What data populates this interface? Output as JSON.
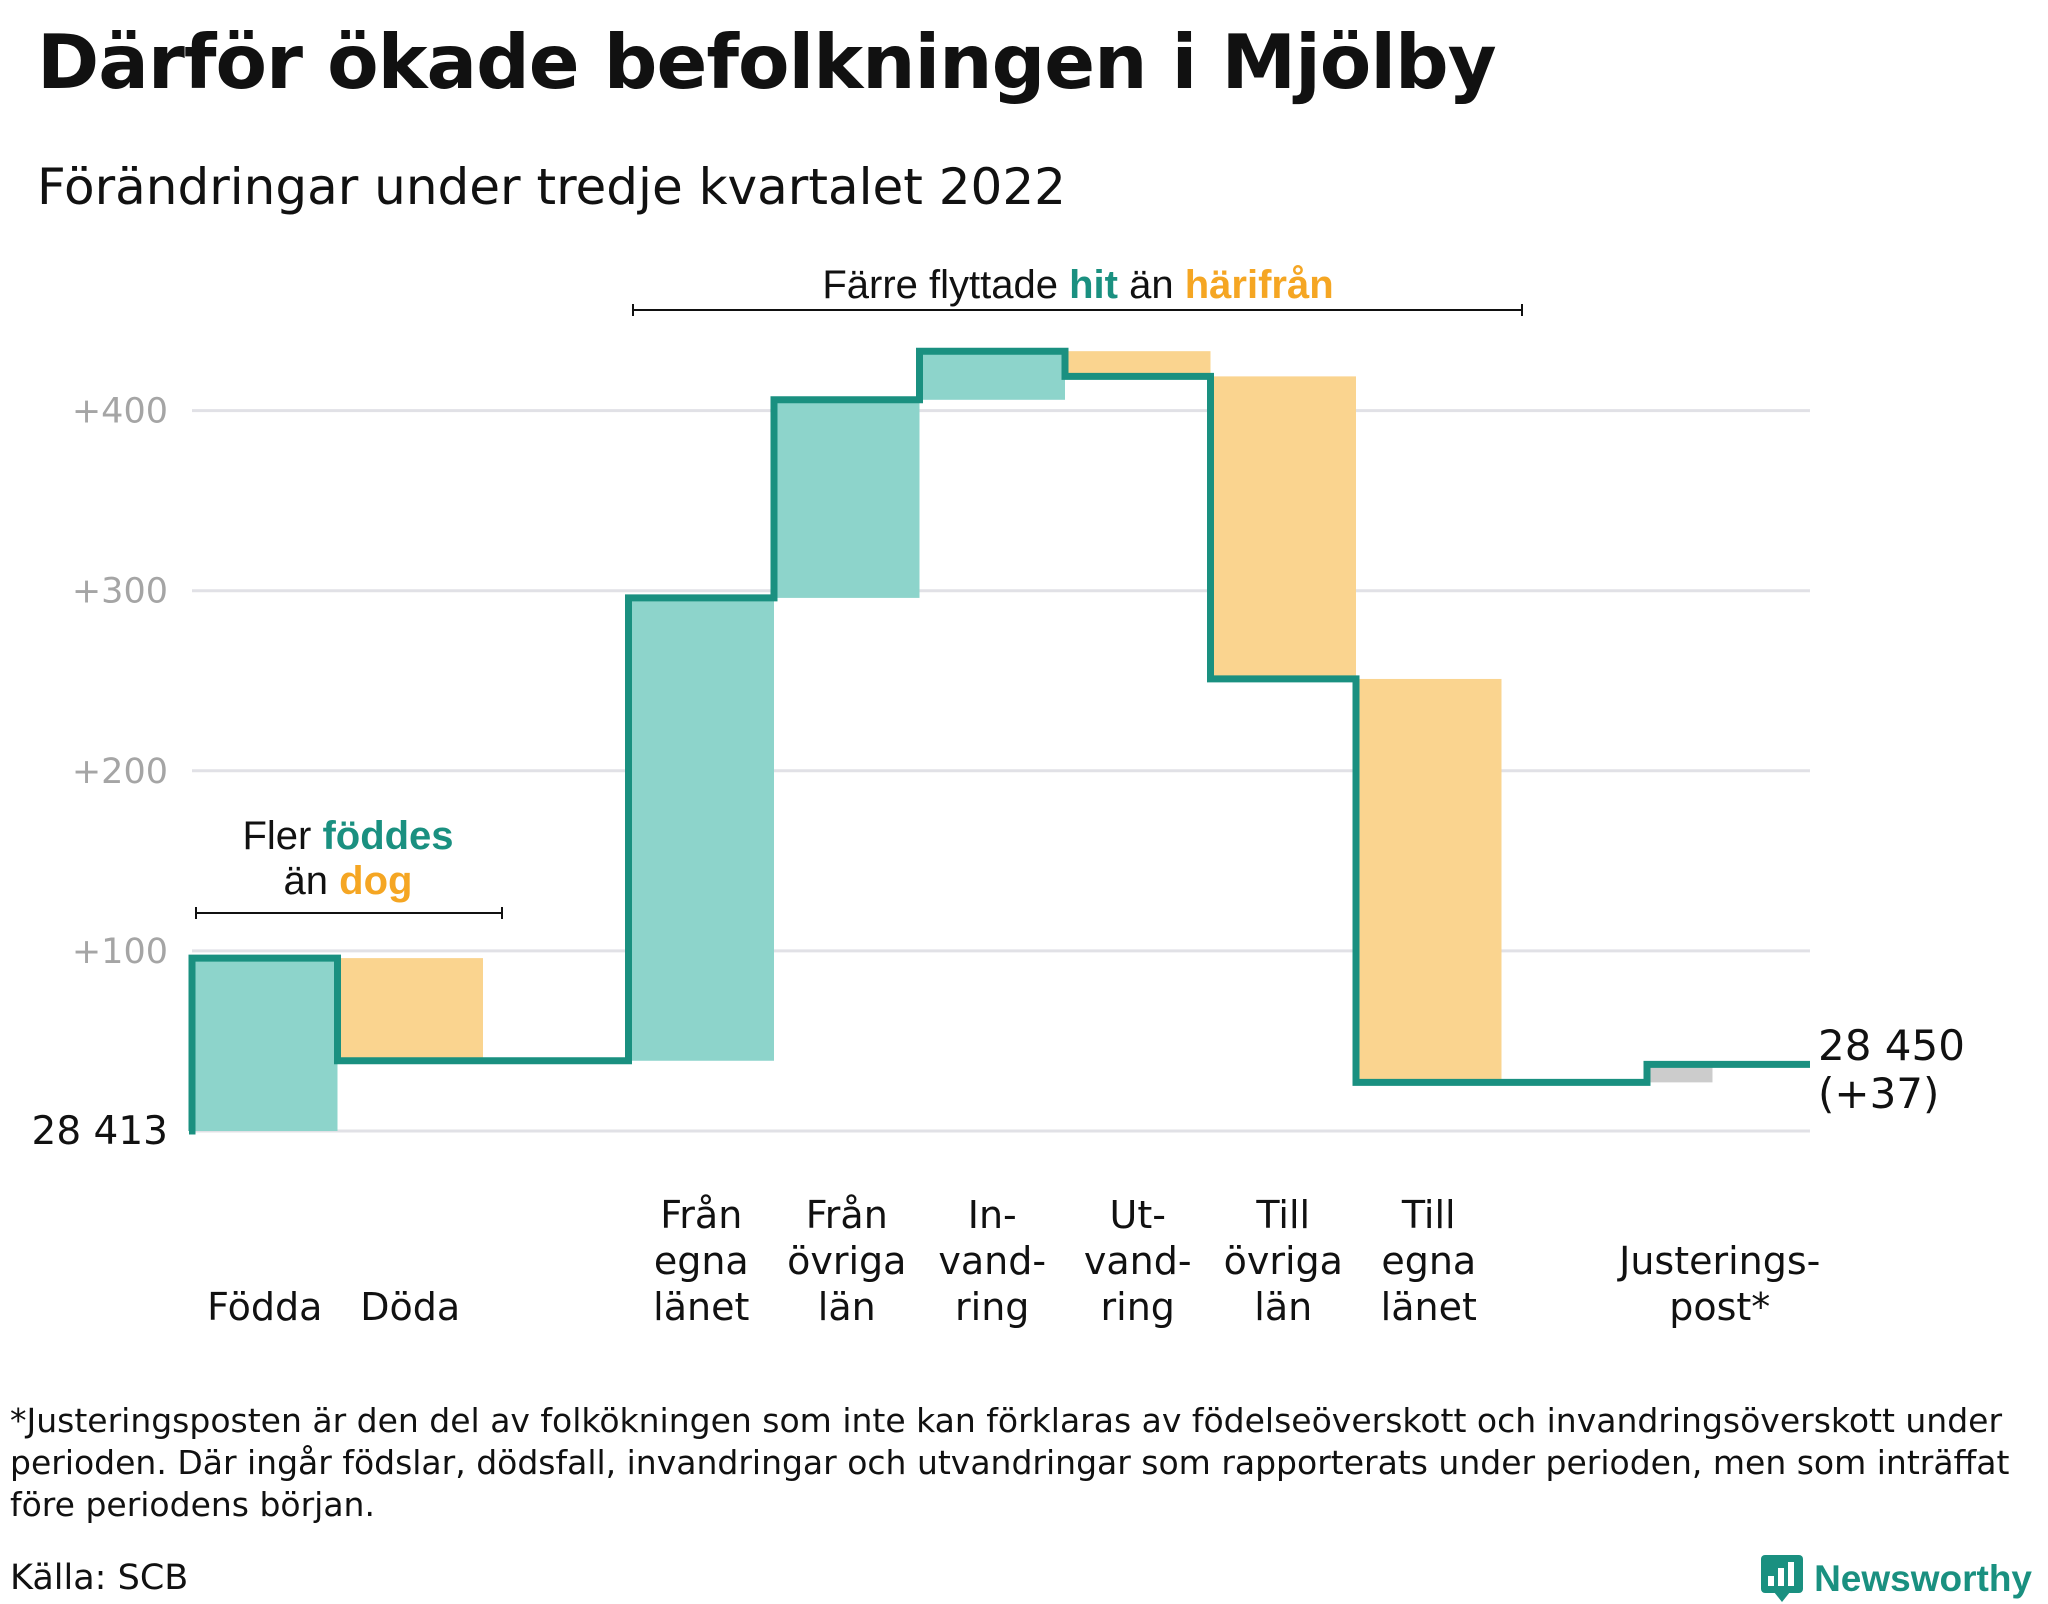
{
  "title": "Därför ökade befolkningen i Mjölby",
  "subtitle": "Förändringar under tredje kvartalet 2022",
  "footnote": "*Justeringsposten är den del av folkökningen som inte kan förklaras av födelseöverskott och invandringsöverskott under perioden. Där ingår födslar, dödsfall, invandringar och utvandringar som rapporterats under perioden, men som inträffat före periodens början.",
  "source": "Källa: SCB",
  "brand": "Newsworthy",
  "colors": {
    "line": "#1a9080",
    "increase": "#8dd4cb",
    "decrease": "#fad48f",
    "adjustment": "#cccccc",
    "grid": "#e1e1e6",
    "tick": "#a5a5a5",
    "accent_orange": "#f5a623"
  },
  "chart_data": {
    "type": "waterfall",
    "start_value": 28413,
    "start_label": "28 413",
    "end_label": "28 450",
    "end_change_label": "(+37)",
    "ylim": [
      0,
      440
    ],
    "yticks": [
      100,
      200,
      300,
      400
    ],
    "ytick_labels": [
      "+100",
      "+200",
      "+300",
      "+400"
    ],
    "grid": true,
    "steps": [
      {
        "label": [
          "Födda"
        ],
        "change": 96,
        "kind": "increase"
      },
      {
        "label": [
          "Döda"
        ],
        "change": -57,
        "kind": "decrease"
      },
      {
        "label": [
          "Från",
          "egna",
          "länet"
        ],
        "change": 257,
        "kind": "increase"
      },
      {
        "label": [
          "Från",
          "övriga",
          "län"
        ],
        "change": 110,
        "kind": "increase"
      },
      {
        "label": [
          "In-",
          "vand-",
          "ring"
        ],
        "change": 27,
        "kind": "increase"
      },
      {
        "label": [
          "Ut-",
          "vand-",
          "ring"
        ],
        "change": -14,
        "kind": "decrease"
      },
      {
        "label": [
          "Till",
          "övriga",
          "län"
        ],
        "change": -168,
        "kind": "decrease"
      },
      {
        "label": [
          "Till",
          "egna",
          "länet"
        ],
        "change": -224,
        "kind": "decrease"
      },
      {
        "label": [
          "Justerings-",
          "post*"
        ],
        "change": 10,
        "kind": "adjustment"
      }
    ],
    "annotations": [
      {
        "lines": [
          [
            {
              "t": "Fler ",
              "c": "text"
            },
            {
              "t": "föddes",
              "c": "increase"
            }
          ],
          [
            {
              "t": "än ",
              "c": "text"
            },
            {
              "t": "dog",
              "c": "decrease"
            }
          ]
        ],
        "group": "births"
      },
      {
        "lines": [
          [
            {
              "t": "Färre flyttade ",
              "c": "text"
            },
            {
              "t": "hit",
              "c": "increase"
            },
            {
              "t": " än ",
              "c": "text"
            },
            {
              "t": "härifrån",
              "c": "decrease"
            }
          ]
        ],
        "group": "migration"
      }
    ]
  }
}
